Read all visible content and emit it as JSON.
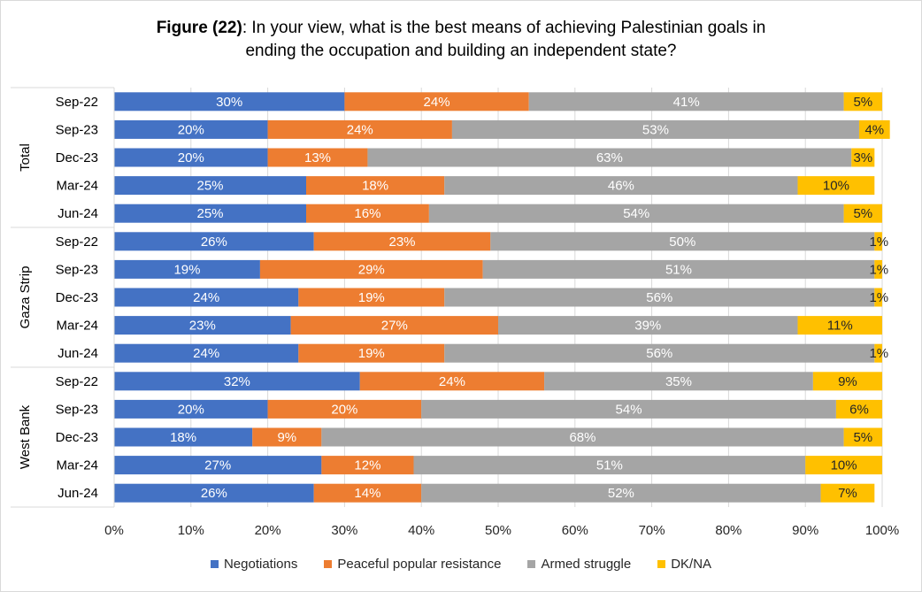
{
  "title": {
    "prefix": "Figure (22)",
    "text": ": In your view, what is the best means of achieving Palestinian goals in",
    "text2": "ending the occupation and building an independent state?"
  },
  "chart_data": {
    "type": "bar",
    "orientation": "horizontal",
    "stacked": true,
    "x_axis": {
      "min": 0,
      "max": 100,
      "ticks": [
        "0%",
        "10%",
        "20%",
        "30%",
        "40%",
        "50%",
        "60%",
        "70%",
        "80%",
        "90%",
        "100%"
      ]
    },
    "legend_position": "bottom",
    "grid": true,
    "series": [
      {
        "name": "Negotiations",
        "color": "#4472C4"
      },
      {
        "name": "Peaceful popular resistance",
        "color": "#ED7D31"
      },
      {
        "name": "Armed struggle",
        "color": "#A5A5A5"
      },
      {
        "name": "DK/NA",
        "color": "#FFC000"
      }
    ],
    "groups": [
      {
        "name": "Total",
        "rows": [
          {
            "label": "Sep-22",
            "values": [
              30,
              24,
              41,
              5
            ]
          },
          {
            "label": "Sep-23",
            "values": [
              20,
              24,
              53,
              4
            ]
          },
          {
            "label": "Dec-23",
            "values": [
              20,
              13,
              63,
              3
            ]
          },
          {
            "label": "Mar-24",
            "values": [
              25,
              18,
              46,
              10
            ]
          },
          {
            "label": "Jun-24",
            "values": [
              25,
              16,
              54,
              5
            ]
          }
        ]
      },
      {
        "name": "Gaza Strip",
        "rows": [
          {
            "label": "Sep-22",
            "values": [
              26,
              23,
              50,
              1
            ]
          },
          {
            "label": "Sep-23",
            "values": [
              19,
              29,
              51,
              1
            ]
          },
          {
            "label": "Dec-23",
            "values": [
              24,
              19,
              56,
              1
            ]
          },
          {
            "label": "Mar-24",
            "values": [
              23,
              27,
              39,
              11
            ]
          },
          {
            "label": "Jun-24",
            "values": [
              24,
              19,
              56,
              1
            ]
          }
        ]
      },
      {
        "name": "West Bank",
        "rows": [
          {
            "label": "Sep-22",
            "values": [
              32,
              24,
              35,
              9
            ]
          },
          {
            "label": "Sep-23",
            "values": [
              20,
              20,
              54,
              6
            ]
          },
          {
            "label": "Dec-23",
            "values": [
              18,
              9,
              68,
              5
            ]
          },
          {
            "label": "Mar-24",
            "values": [
              27,
              12,
              51,
              10
            ]
          },
          {
            "label": "Jun-24",
            "values": [
              26,
              14,
              52,
              7
            ]
          }
        ]
      }
    ]
  }
}
